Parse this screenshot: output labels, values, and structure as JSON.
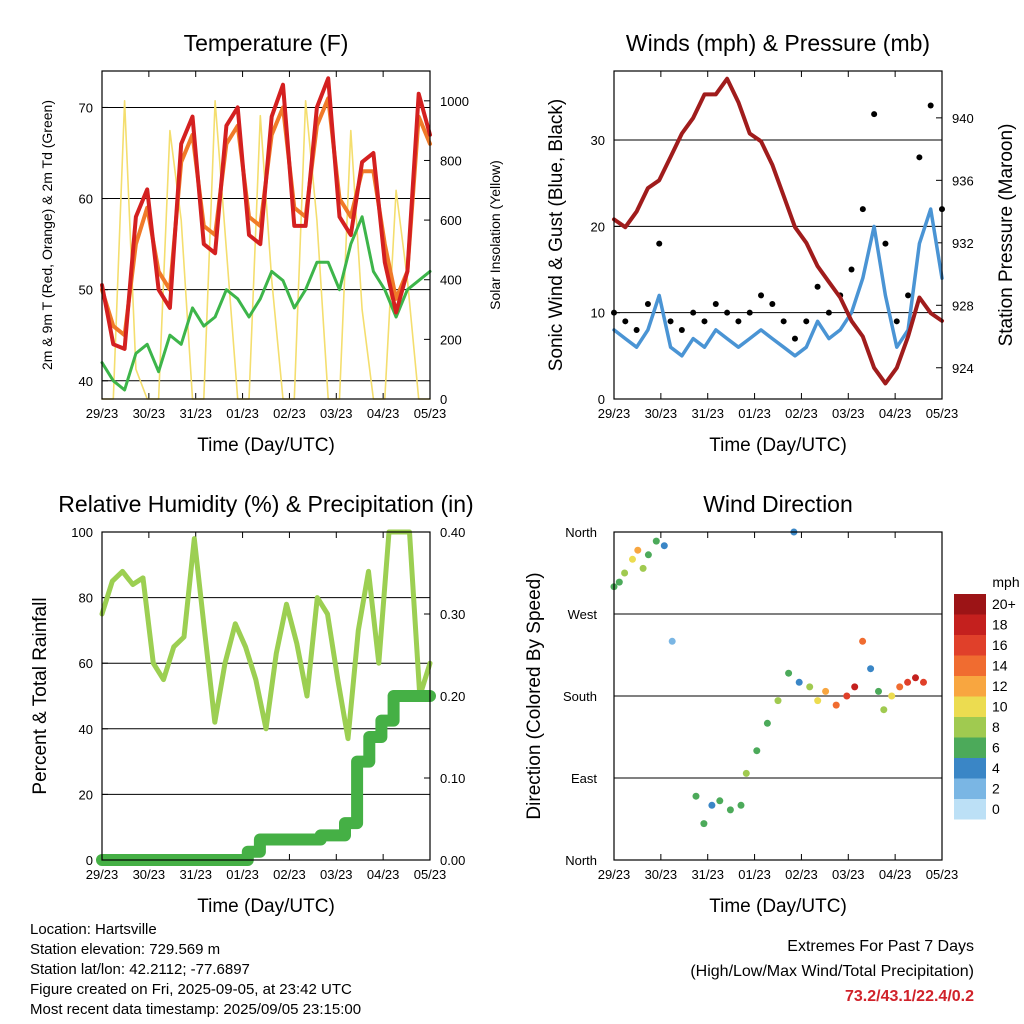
{
  "chart_data": [
    {
      "type": "line",
      "title": "Temperature (F)",
      "xlabel": "Time (Day/UTC)",
      "ylabel": "2m & 9m T (Red, Orange) & 2m Td (Green)",
      "y2label": "Solar Insolation (Yellow)",
      "x_ticks": [
        "29/23",
        "30/23",
        "31/23",
        "01/23",
        "02/23",
        "03/23",
        "04/23",
        "05/23"
      ],
      "ylim": [
        38,
        74
      ],
      "y_ticks": [
        40,
        50,
        60,
        70
      ],
      "y2lim": [
        0,
        1100
      ],
      "y2_ticks": [
        0,
        200,
        400,
        600,
        800,
        1000
      ],
      "colors": {
        "t2m": "#d42020",
        "t9m": "#f07a28",
        "td": "#3db54a",
        "solar": "#f4de6e"
      },
      "series": [
        {
          "key": "t2m",
          "values": [
            50.5,
            44.0,
            43.5,
            58,
            61,
            50,
            48,
            66,
            69,
            55,
            54,
            68,
            70,
            56,
            55,
            69,
            72.5,
            57,
            57,
            70,
            73.2,
            58,
            56,
            64,
            65,
            53,
            47.5,
            52,
            71.5,
            67
          ]
        },
        {
          "key": "t9m",
          "values": [
            50,
            46,
            45,
            55,
            59,
            52,
            50,
            64,
            67,
            57,
            56,
            66,
            68,
            58,
            57,
            67,
            70,
            59,
            58,
            68,
            71,
            60,
            58,
            63,
            63,
            55,
            49,
            52,
            69,
            66
          ]
        },
        {
          "key": "td",
          "values": [
            42,
            40,
            39,
            43,
            44,
            41,
            45,
            44,
            48,
            46,
            47,
            50,
            49,
            47,
            49,
            52,
            51,
            48,
            50,
            53,
            53,
            50,
            55,
            58,
            52,
            50,
            47,
            50,
            51,
            52
          ]
        },
        {
          "key": "solar",
          "values": [
            0,
            0,
            1000,
            100,
            0,
            0,
            900,
            600,
            0,
            0,
            1000,
            500,
            0,
            0,
            950,
            400,
            0,
            0,
            1000,
            600,
            0,
            0,
            900,
            300,
            0,
            0,
            700,
            400,
            0,
            0
          ]
        }
      ]
    },
    {
      "type": "line",
      "title": "Winds (mph) & Pressure (mb)",
      "xlabel": "Time (Day/UTC)",
      "ylabel": "Sonic Wind & Gust (Blue, Black)",
      "y2label": "Station Pressure (Maroon)",
      "x_ticks": [
        "29/23",
        "30/23",
        "31/23",
        "01/23",
        "02/23",
        "03/23",
        "04/23",
        "05/23"
      ],
      "ylim": [
        0,
        38
      ],
      "y_ticks": [
        0,
        10,
        20,
        30
      ],
      "y2lim": [
        922.0,
        943.0
      ],
      "y2_ticks": [
        924,
        928,
        932,
        936,
        940
      ],
      "colors": {
        "wind": "#4a94d4",
        "gust": "#000000",
        "pressure": "#a01c1c"
      },
      "series": [
        {
          "key": "wind",
          "values": [
            8,
            7,
            6,
            8,
            12,
            6,
            5,
            7,
            6,
            8,
            7,
            6,
            7,
            8,
            7,
            6,
            5,
            6,
            9,
            7,
            8,
            10,
            14,
            20,
            12,
            6,
            8,
            18,
            22,
            14
          ]
        },
        {
          "key": "gust",
          "values": [
            10,
            9,
            8,
            11,
            18,
            9,
            8,
            10,
            9,
            11,
            10,
            9,
            10,
            12,
            11,
            9,
            7,
            9,
            13,
            10,
            12,
            15,
            22,
            33,
            18,
            9,
            12,
            28,
            34,
            22
          ]
        },
        {
          "key": "pressure",
          "values": [
            933.5,
            933,
            934,
            935.5,
            936,
            937.5,
            939,
            940,
            941.5,
            941.5,
            942.5,
            941,
            939,
            938.5,
            937,
            935,
            933,
            932,
            930.5,
            929.5,
            928.5,
            927,
            926,
            924,
            923,
            924,
            926,
            928.5,
            927.5,
            927
          ]
        }
      ]
    },
    {
      "type": "line",
      "title": "Relative Humidity (%) & Precipitation (in)",
      "xlabel": "Time (Day/UTC)",
      "ylabel": "Percent & Total Rainfall",
      "x_ticks": [
        "29/23",
        "30/23",
        "31/23",
        "01/23",
        "02/23",
        "03/23",
        "04/23",
        "05/23"
      ],
      "ylim": [
        0,
        100
      ],
      "y_ticks": [
        0,
        20,
        40,
        60,
        80,
        100
      ],
      "y2lim": [
        0,
        0.4
      ],
      "y2_ticks": [
        "0.00",
        "0.10",
        "0.20",
        "0.30",
        "0.40"
      ],
      "colors": {
        "rh": "#9ccf52",
        "precip": "#45b045"
      },
      "series": [
        {
          "key": "rh",
          "values": [
            75,
            85,
            88,
            84,
            86,
            60,
            55,
            65,
            68,
            98,
            70,
            42,
            60,
            72,
            65,
            55,
            40,
            63,
            78,
            66,
            50,
            80,
            75,
            55,
            37,
            70,
            88,
            60,
            100,
            100,
            100,
            50,
            60
          ]
        },
        {
          "key": "precip",
          "values": [
            0,
            0,
            0,
            0,
            0,
            0,
            0,
            0,
            0,
            0,
            0,
            0,
            0.01,
            0.025,
            0.025,
            0.025,
            0.025,
            0.025,
            0.03,
            0.03,
            0.045,
            0.12,
            0.15,
            0.17,
            0.2,
            0.2,
            0.2,
            0.2
          ]
        }
      ]
    },
    {
      "type": "scatter",
      "title": "Wind Direction",
      "xlabel": "Time (Day/UTC)",
      "ylabel": "Direction (Colored By Speed)",
      "x_ticks": [
        "29/23",
        "30/23",
        "31/23",
        "01/23",
        "02/23",
        "03/23",
        "04/23",
        "05/23"
      ],
      "y_ticks": [
        "North",
        "East",
        "South",
        "West",
        "North"
      ],
      "ylim": [
        0,
        360
      ],
      "colorbar_title": "mph",
      "colorbar_labels": [
        "20+",
        "18",
        "16",
        "14",
        "12",
        "10",
        "8",
        "6",
        "4",
        "2",
        "0"
      ],
      "colorbar_colors": [
        "#9c1416",
        "#c4201e",
        "#e0402a",
        "#f06c30",
        "#f8a640",
        "#ecdc50",
        "#a0ca50",
        "#4caa5a",
        "#3a86c6",
        "#7ab6e4",
        "#bce0f6"
      ],
      "points": [
        {
          "x": 0.0,
          "y": 300,
          "s": 6
        },
        {
          "x": 0.1,
          "y": 305,
          "s": 5
        },
        {
          "x": 0.2,
          "y": 315,
          "s": 8
        },
        {
          "x": 0.35,
          "y": 330,
          "s": 10
        },
        {
          "x": 0.45,
          "y": 340,
          "s": 12
        },
        {
          "x": 0.55,
          "y": 320,
          "s": 8
        },
        {
          "x": 0.65,
          "y": 335,
          "s": 6
        },
        {
          "x": 0.8,
          "y": 350,
          "s": 5
        },
        {
          "x": 0.95,
          "y": 345,
          "s": 4
        },
        {
          "x": 1.1,
          "y": 240,
          "s": 2
        },
        {
          "x": 1.55,
          "y": 70,
          "s": 6
        },
        {
          "x": 1.7,
          "y": 40,
          "s": 5
        },
        {
          "x": 1.85,
          "y": 60,
          "s": 4
        },
        {
          "x": 2.0,
          "y": 65,
          "s": 6
        },
        {
          "x": 2.2,
          "y": 55,
          "s": 5
        },
        {
          "x": 2.4,
          "y": 60,
          "s": 6
        },
        {
          "x": 2.5,
          "y": 95,
          "s": 7
        },
        {
          "x": 2.7,
          "y": 120,
          "s": 6
        },
        {
          "x": 2.9,
          "y": 150,
          "s": 5
        },
        {
          "x": 3.1,
          "y": 175,
          "s": 7
        },
        {
          "x": 3.3,
          "y": 205,
          "s": 5
        },
        {
          "x": 3.4,
          "y": 360,
          "s": 4
        },
        {
          "x": 3.5,
          "y": 195,
          "s": 4
        },
        {
          "x": 3.7,
          "y": 190,
          "s": 8
        },
        {
          "x": 3.85,
          "y": 175,
          "s": 10
        },
        {
          "x": 4.0,
          "y": 185,
          "s": 12
        },
        {
          "x": 4.2,
          "y": 170,
          "s": 14
        },
        {
          "x": 4.4,
          "y": 180,
          "s": 16
        },
        {
          "x": 4.55,
          "y": 190,
          "s": 18
        },
        {
          "x": 4.7,
          "y": 240,
          "s": 14
        },
        {
          "x": 4.85,
          "y": 210,
          "s": 4
        },
        {
          "x": 5.0,
          "y": 185,
          "s": 6
        },
        {
          "x": 5.1,
          "y": 165,
          "s": 8
        },
        {
          "x": 5.25,
          "y": 180,
          "s": 10
        },
        {
          "x": 5.4,
          "y": 190,
          "s": 14
        },
        {
          "x": 5.55,
          "y": 195,
          "s": 16
        },
        {
          "x": 5.7,
          "y": 200,
          "s": 18
        },
        {
          "x": 5.85,
          "y": 195,
          "s": 16
        }
      ]
    }
  ],
  "footer": {
    "location": "Location: Hartsville",
    "elevation": "Station elevation: 729.569 m",
    "latlon": "Station lat/lon: 42.2112; -77.6897",
    "created": "Figure created on Fri, 2025-09-05, at 23:42 UTC",
    "timestamp": "Most recent data timestamp: 2025/09/05 23:15:00"
  },
  "extremes": {
    "line1": "Extremes For Past 7 Days",
    "line2": "(High/Low/Max Wind/Total Precipitation)",
    "values": "73.2/43.1/22.4/0.2",
    "color": "#d0222a"
  }
}
